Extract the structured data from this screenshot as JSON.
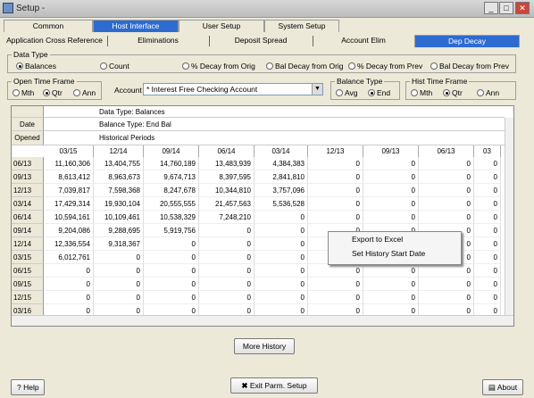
{
  "window": {
    "title": "Setup -"
  },
  "tabs_top": [
    {
      "label": "Common"
    },
    {
      "label": "Host Interface"
    },
    {
      "label": "User Setup"
    },
    {
      "label": "System Setup"
    }
  ],
  "tabs_sub": [
    {
      "label": "Application Cross Reference"
    },
    {
      "label": "Eliminations"
    },
    {
      "label": "Deposit Spread"
    },
    {
      "label": "Account Elim"
    },
    {
      "label": "Dep Decay"
    }
  ],
  "data_type": {
    "legend": "Data Type",
    "options": [
      "Balances",
      "Count",
      "% Decay from Orig",
      "Bal Decay from Orig",
      "% Decay from Prev",
      "Bal Decay from Prev"
    ],
    "selected": "Balances"
  },
  "open_time_frame": {
    "legend": "Open Time Frame",
    "options": [
      "Mth",
      "Qtr",
      "Ann"
    ],
    "selected": "Qtr"
  },
  "account": {
    "label": "Account",
    "value": "* Interest Free Checking Account"
  },
  "balance_type": {
    "legend": "Balance Type",
    "options": [
      "Avg",
      "End"
    ],
    "selected": "End"
  },
  "hist_time_frame": {
    "legend": "Hist Time Frame",
    "options": [
      "Mth",
      "Qtr",
      "Ann"
    ],
    "selected": "Qtr"
  },
  "grid": {
    "info_lines": [
      "Data Type: Balances",
      "Balance Type: End Bal",
      "Historical Periods"
    ],
    "side_labels": [
      "Date",
      "Opened"
    ],
    "columns": [
      "03/15",
      "12/14",
      "09/14",
      "06/14",
      "03/14",
      "12/13",
      "09/13",
      "06/13",
      "03"
    ],
    "rows": [
      {
        "date": "06/13",
        "values": [
          "11,160,306",
          "13,404,755",
          "14,760,189",
          "13,483,939",
          "4,384,383",
          "0",
          "0",
          "0",
          "0"
        ]
      },
      {
        "date": "09/13",
        "values": [
          "8,613,412",
          "8,963,673",
          "9,674,713",
          "8,397,595",
          "2,841,810",
          "0",
          "0",
          "0",
          "0"
        ]
      },
      {
        "date": "12/13",
        "values": [
          "7,039,817",
          "7,598,368",
          "8,247,678",
          "10,344,810",
          "3,757,096",
          "0",
          "0",
          "0",
          "0"
        ]
      },
      {
        "date": "03/14",
        "values": [
          "17,429,314",
          "19,930,104",
          "20,555,555",
          "21,457,563",
          "5,536,528",
          "0",
          "0",
          "0",
          "0"
        ]
      },
      {
        "date": "06/14",
        "values": [
          "10,594,161",
          "10,109,461",
          "10,538,329",
          "7,248,210",
          "0",
          "0",
          "0",
          "0",
          "0"
        ]
      },
      {
        "date": "09/14",
        "values": [
          "9,204,086",
          "9,288,695",
          "5,919,756",
          "0",
          "0",
          "0",
          "0",
          "0",
          "0"
        ]
      },
      {
        "date": "12/14",
        "values": [
          "12,336,554",
          "9,318,367",
          "0",
          "0",
          "0",
          "0",
          "0",
          "0",
          "0"
        ]
      },
      {
        "date": "03/15",
        "values": [
          "6,012,761",
          "0",
          "0",
          "0",
          "0",
          "0",
          "0",
          "0",
          "0"
        ]
      },
      {
        "date": "06/15",
        "values": [
          "0",
          "0",
          "0",
          "0",
          "0",
          "0",
          "0",
          "0",
          "0"
        ]
      },
      {
        "date": "09/15",
        "values": [
          "0",
          "0",
          "0",
          "0",
          "0",
          "0",
          "0",
          "0",
          "0"
        ]
      },
      {
        "date": "12/15",
        "values": [
          "0",
          "0",
          "0",
          "0",
          "0",
          "0",
          "0",
          "0",
          "0"
        ]
      },
      {
        "date": "03/16",
        "values": [
          "0",
          "0",
          "0",
          "0",
          "0",
          "0",
          "0",
          "0",
          "0"
        ]
      },
      {
        "date": "06/16",
        "values": [
          "0",
          "0",
          "0",
          "0",
          "0",
          "0",
          "0",
          "0",
          "0"
        ]
      }
    ]
  },
  "context_menu": [
    "Export to Excel",
    "Set History Start Date"
  ],
  "buttons": {
    "more_history": "More History",
    "help": "Help",
    "exit": "Exit Parm. Setup",
    "about": "About"
  }
}
